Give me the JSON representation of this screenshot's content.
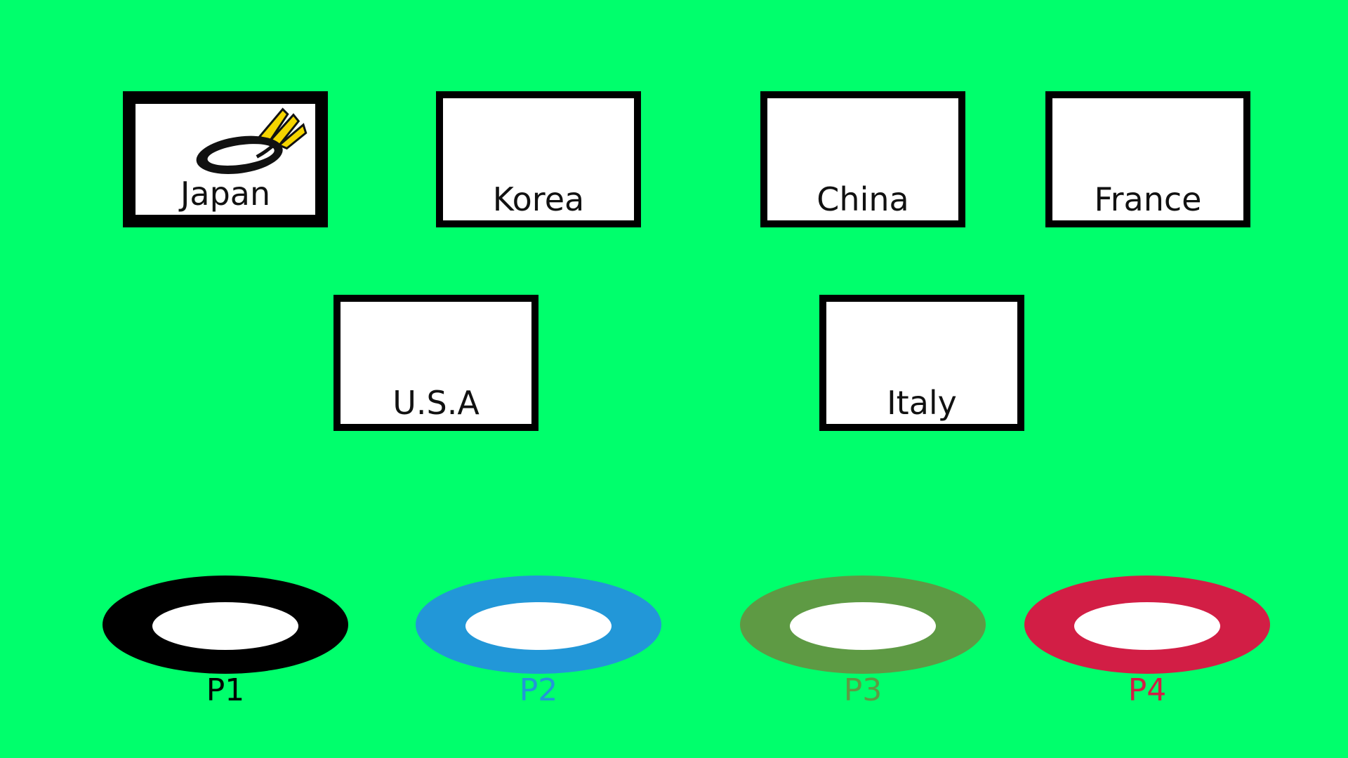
{
  "background_color": "#00ff6c",
  "countries": [
    {
      "label": "Japan",
      "icon": "ring-player-token-icon",
      "selected": true
    },
    {
      "label": "Korea"
    },
    {
      "label": "China"
    },
    {
      "label": "France"
    },
    {
      "label": "U.S.A"
    },
    {
      "label": "Italy"
    }
  ],
  "players": [
    {
      "label": "P1",
      "color": "#000000"
    },
    {
      "label": "P2",
      "color": "#2297d8"
    },
    {
      "label": "P3",
      "color": "#5e9a44"
    },
    {
      "label": "P4",
      "color": "#d21e45"
    }
  ]
}
